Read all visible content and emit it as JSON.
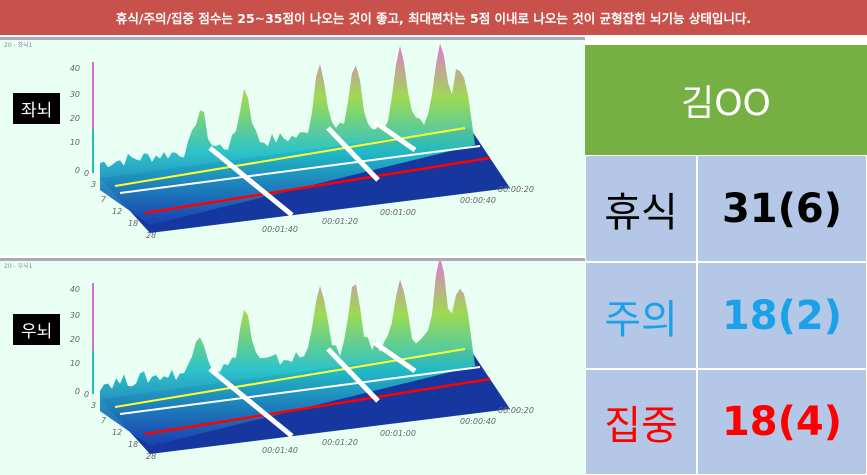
{
  "banner": "휴식/주의/집중 점수는 25~35점이 나오는 것이 좋고, 최대편차는 5점 이내로 나오는 것이 균형잡힌 뇌기능 상태입니다.",
  "panels": [
    {
      "window_title": "20 - 좌뇌1",
      "label": "좌뇌"
    },
    {
      "window_title": "20 - 우뇌1",
      "label": "우뇌"
    }
  ],
  "z_ticks": [
    "40",
    "30",
    "20",
    "10",
    "0"
  ],
  "freq_ticks": [
    "0",
    "3",
    "7",
    "12",
    "18",
    "28"
  ],
  "time_ticks": [
    "00:00:20",
    "00:00:40",
    "00:01:00",
    "00:01:20",
    "00:01:40"
  ],
  "table": {
    "name": "김OO",
    "rows": [
      {
        "label": "휴식",
        "value": "31(6)"
      },
      {
        "label": "주의",
        "value": "18(2)"
      },
      {
        "label": "집중",
        "value": "18(4)"
      }
    ]
  }
}
